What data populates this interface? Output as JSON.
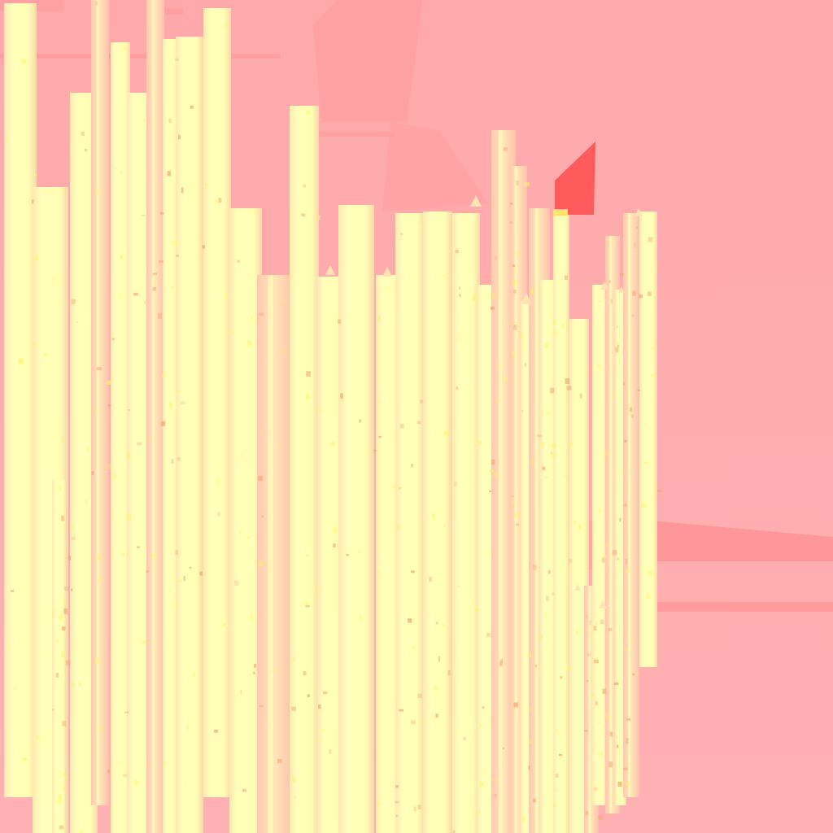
{
  "palette": {
    "background": "#FFADB0",
    "background_band": "#FF9396",
    "bar_light": "#FFFFB8",
    "bar_mid": "#FFF6B0",
    "bar_tint": "#FFE3B0",
    "bar_shade": "#F8C9A8",
    "speck_warm": "#F2A26E",
    "speck_yellow": "#FFF36A",
    "accent_red": "#FF5A5C",
    "accent_yellow": "#FFE36A"
  }
}
